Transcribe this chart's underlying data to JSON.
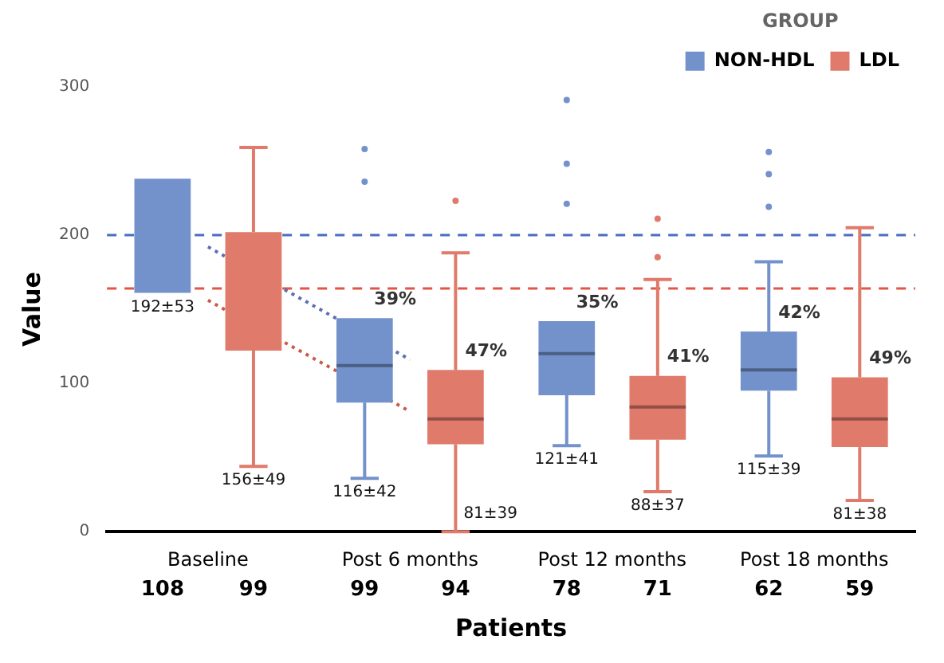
{
  "chart_data": {
    "type": "box",
    "xlabel": "Patients",
    "ylabel": "Value",
    "legend_title": "GROUP",
    "legend": "top right",
    "grid": false,
    "categories": [
      "Baseline",
      "Post 6 months",
      "Post 12 months",
      "Post 18 months"
    ],
    "ylim": [
      0,
      300
    ],
    "yticks": [
      0,
      100,
      200,
      300
    ],
    "series": [
      {
        "name": "NON-HDL",
        "color": "#7392cc",
        "value_labels": [
          "192±53",
          "116±42",
          "121±41",
          "115±39"
        ],
        "boxes": [
          {
            "low": null,
            "q1": 161,
            "median": null,
            "q3": 238,
            "high": null
          },
          {
            "low": 36,
            "q1": 87,
            "median": 112,
            "q3": 144,
            "high": null,
            "outliers": [
              258,
              236
            ]
          },
          {
            "low": 58,
            "q1": 92,
            "median": 120,
            "q3": 142,
            "high": null,
            "outliers": [
              291,
              248,
              221
            ]
          },
          {
            "low": 51,
            "q1": 95,
            "median": 109,
            "q3": 135,
            "high": 182,
            "outliers": [
              256,
              241,
              219
            ]
          }
        ]
      },
      {
        "name": "LDL",
        "color": "#e07a6a",
        "value_labels": [
          "156±49",
          "81±39",
          "88±37",
          "81±38"
        ],
        "boxes": [
          {
            "low": 44,
            "q1": 122,
            "median": null,
            "q3": 202,
            "high": 259
          },
          {
            "low": 0,
            "q1": 59,
            "median": 76,
            "q3": 109,
            "high": 188,
            "outliers": [
              223
            ]
          },
          {
            "low": 27,
            "q1": 62,
            "median": 84,
            "q3": 105,
            "high": 170,
            "outliers": [
              211,
              185
            ]
          },
          {
            "low": 21,
            "q1": 57,
            "median": 76,
            "q3": 104,
            "high": 205
          }
        ]
      },
      {
        "type": "line",
        "color": "#5b6fb0",
        "values": [
          192,
          116,
          null,
          null
        ],
        "marker": "none",
        "line_style": "dotted"
      },
      {
        "type": "line",
        "color": "#c85a4a",
        "values": [
          156,
          81,
          null,
          null
        ],
        "marker": "none",
        "line_style": "dotted"
      }
    ],
    "ref_lines": [
      {
        "axis": "y",
        "value": 200,
        "color": "#4a6fbf",
        "line_style": "dashed"
      },
      {
        "axis": "y",
        "value": 164,
        "color": "#e05545",
        "line_style": "dashed"
      }
    ],
    "annotations": [
      "108",
      "99",
      "99",
      "94",
      "78",
      "71",
      "62",
      "59",
      "39%",
      "47%",
      "35%",
      "41%",
      "42%",
      "49%"
    ]
  }
}
